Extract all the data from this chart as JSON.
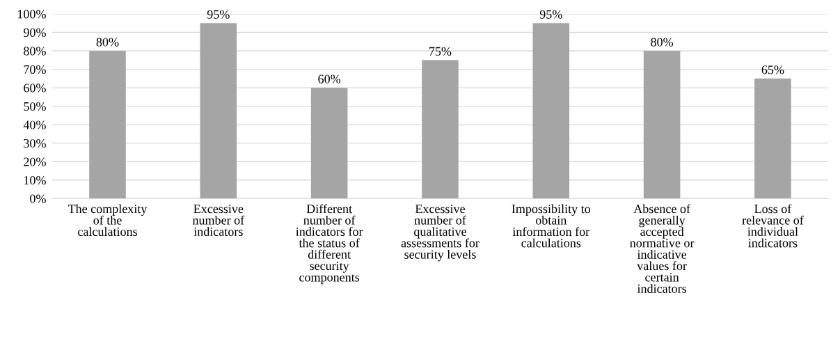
{
  "chart_data": {
    "type": "bar",
    "categories": [
      "The complexity\nof the\ncalculations",
      "Excessive\nnumber of\nindicators",
      "Different\nnumber of\nindicators for\nthe status of\ndifferent\nsecurity\ncomponents",
      "Excessive\nnumber of\nqualitative\nassessments for\nsecurity levels",
      "Impossibility to\nobtain\ninformation for\ncalculations",
      "Absence of\ngenerally\naccepted\nnormative or\nindicative\nvalues for\ncertain\nindicators",
      "Loss of\nrelevance of\nindividual\nindicators"
    ],
    "values": [
      80,
      95,
      60,
      75,
      95,
      80,
      65
    ],
    "value_labels": [
      "80%",
      "95%",
      "60%",
      "75%",
      "95%",
      "80%",
      "65%"
    ],
    "color": "#a5a5a5",
    "ylim": [
      0,
      100
    ],
    "yticks": [
      {
        "value": 0,
        "label": "0%"
      },
      {
        "value": 10,
        "label": "10%"
      },
      {
        "value": 20,
        "label": "20%"
      },
      {
        "value": 30,
        "label": "30%"
      },
      {
        "value": 40,
        "label": "40%"
      },
      {
        "value": 50,
        "label": "50%"
      },
      {
        "value": 60,
        "label": "60%"
      },
      {
        "value": 70,
        "label": "70%"
      },
      {
        "value": 80,
        "label": "80%"
      },
      {
        "value": 90,
        "label": "90%"
      },
      {
        "value": 100,
        "label": "100%"
      }
    ],
    "grid": "y"
  }
}
